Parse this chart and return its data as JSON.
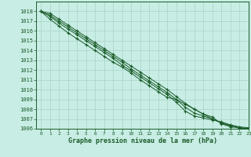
{
  "title": "Graphe pression niveau de la mer (hPa)",
  "bg_color": "#c8ede4",
  "grid_color": "#a8d4c8",
  "line_color": "#1a5c2a",
  "xlim": [
    -0.5,
    23
  ],
  "ylim": [
    1006,
    1019
  ],
  "xticks": [
    0,
    1,
    2,
    3,
    4,
    5,
    6,
    7,
    8,
    9,
    10,
    11,
    12,
    13,
    14,
    15,
    16,
    17,
    18,
    19,
    20,
    21,
    22,
    23
  ],
  "yticks": [
    1006,
    1007,
    1008,
    1009,
    1010,
    1011,
    1012,
    1013,
    1014,
    1015,
    1016,
    1017,
    1018
  ],
  "series": [
    [
      1018.0,
      1017.2,
      1016.5,
      1015.8,
      1015.2,
      1014.6,
      1014.0,
      1013.4,
      1012.8,
      1012.3,
      1011.7,
      1011.0,
      1010.4,
      1009.8,
      1009.2,
      1009.0,
      1008.5,
      1008.0,
      1007.5,
      1007.2,
      1006.5,
      1006.2,
      1006.1,
      1006.0
    ],
    [
      1018.0,
      1017.5,
      1016.8,
      1016.2,
      1015.6,
      1015.0,
      1014.4,
      1013.8,
      1013.2,
      1012.5,
      1011.9,
      1011.3,
      1010.7,
      1010.1,
      1009.5,
      1008.7,
      1007.8,
      1007.3,
      1007.1,
      1006.9,
      1006.7,
      1006.4,
      1006.2,
      1006.1
    ],
    [
      1018.0,
      1017.8,
      1017.2,
      1016.6,
      1016.0,
      1015.4,
      1014.8,
      1014.2,
      1013.6,
      1013.0,
      1012.4,
      1011.8,
      1011.2,
      1010.6,
      1010.0,
      1009.3,
      1008.6,
      1008.0,
      1007.5,
      1007.0,
      1006.6,
      1006.3,
      1006.1,
      1006.0
    ],
    [
      1018.0,
      1017.6,
      1017.0,
      1016.4,
      1015.8,
      1015.2,
      1014.6,
      1014.0,
      1013.4,
      1012.8,
      1012.1,
      1011.5,
      1010.9,
      1010.3,
      1009.7,
      1009.0,
      1008.2,
      1007.6,
      1007.3,
      1007.0,
      1006.6,
      1006.3,
      1006.1,
      1006.0
    ]
  ]
}
